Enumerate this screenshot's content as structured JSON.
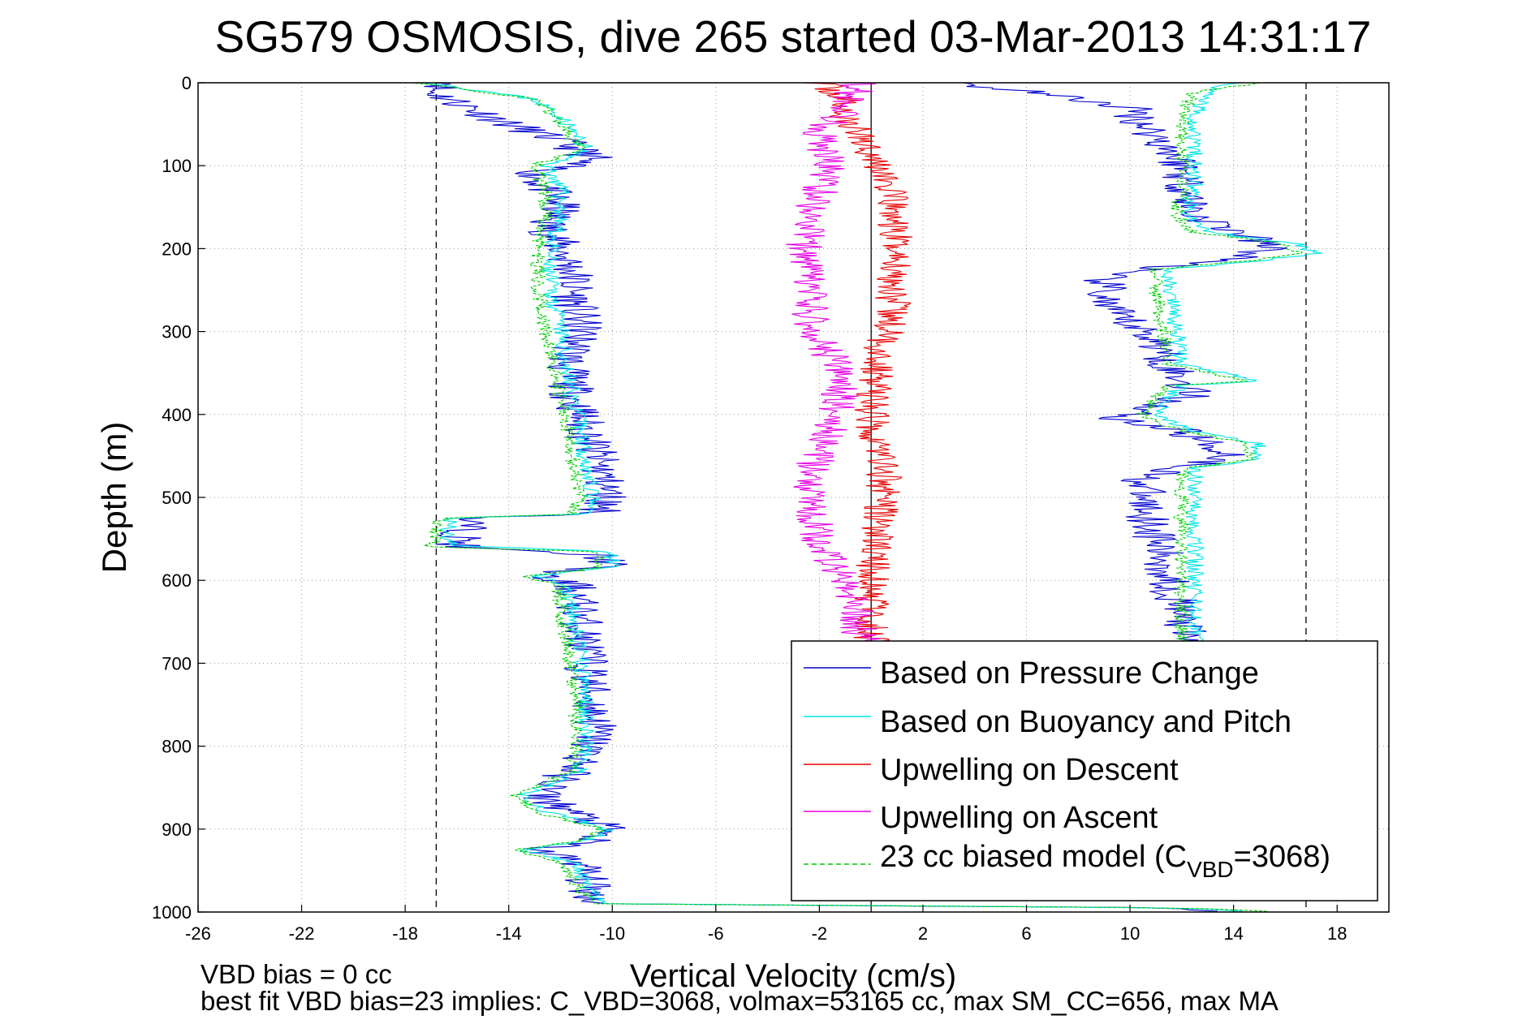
{
  "chart_data": {
    "type": "line",
    "title": "SG579 OSMOSIS, dive 265 started 03-Mar-2013 14:31:17",
    "xlabel": "Vertical Velocity (cm/s)",
    "ylabel": "Depth (m)",
    "xlim": [
      -26,
      20
    ],
    "ylim": [
      0,
      1000
    ],
    "y_reversed": true,
    "grid": true,
    "x_ticks": [
      -26,
      -22,
      -18,
      -14,
      -10,
      -6,
      -2,
      2,
      6,
      10,
      14,
      18
    ],
    "y_ticks": [
      0,
      100,
      200,
      300,
      400,
      500,
      600,
      700,
      800,
      900,
      1000
    ],
    "reference_lines": [
      -16.8,
      16.8
    ],
    "zero_line": 0,
    "legend_position": "lower-right",
    "legend": [
      {
        "label": "Based on Pressure Change",
        "color": "#0000cc",
        "style": "solid"
      },
      {
        "label": "Based on Buoyancy and Pitch",
        "color": "#00e5e5",
        "style": "solid"
      },
      {
        "label": "Upwelling on Descent",
        "color": "#e60000",
        "style": "solid"
      },
      {
        "label": "Upwelling on Ascent",
        "color": "#e600e6",
        "style": "solid"
      },
      {
        "label_main": "23 cc biased model (C",
        "label_sub": "VBD",
        "label_end": "=3068)",
        "color": "#00cc00",
        "style": "dashed"
      }
    ],
    "series": [
      {
        "name": "Based on Pressure Change",
        "color": "#0000cc",
        "noise": 0.9,
        "seed": 11,
        "descent": [
          [
            0,
            -16
          ],
          [
            10,
            -17
          ],
          [
            30,
            -15.5
          ],
          [
            50,
            -14
          ],
          [
            70,
            -12
          ],
          [
            90,
            -10.8
          ],
          [
            110,
            -13
          ],
          [
            130,
            -12.5
          ],
          [
            150,
            -12
          ],
          [
            170,
            -12.5
          ],
          [
            200,
            -12
          ],
          [
            230,
            -11.5
          ],
          [
            260,
            -11.5
          ],
          [
            300,
            -11.2
          ],
          [
            340,
            -11.8
          ],
          [
            380,
            -11.5
          ],
          [
            420,
            -11
          ],
          [
            460,
            -10.5
          ],
          [
            500,
            -10.2
          ],
          [
            520,
            -10.5
          ],
          [
            525,
            -15.5
          ],
          [
            560,
            -16
          ],
          [
            570,
            -10.5
          ],
          [
            580,
            -10
          ],
          [
            595,
            -13
          ],
          [
            605,
            -11.5
          ],
          [
            650,
            -11.2
          ],
          [
            700,
            -11
          ],
          [
            750,
            -10.8
          ],
          [
            780,
            -10.6
          ],
          [
            820,
            -11.2
          ],
          [
            860,
            -12.8
          ],
          [
            880,
            -11.5
          ],
          [
            900,
            -10.2
          ],
          [
            915,
            -11
          ],
          [
            925,
            -13
          ],
          [
            940,
            -11.2
          ],
          [
            960,
            -11
          ],
          [
            980,
            -10.8
          ],
          [
            990,
            -10.5
          ],
          [
            995,
            12
          ],
          [
            1000,
            14
          ]
        ],
        "ascent": [
          [
            0,
            3
          ],
          [
            10,
            6
          ],
          [
            30,
            10
          ],
          [
            50,
            10.5
          ],
          [
            80,
            11.5
          ],
          [
            100,
            12
          ],
          [
            130,
            12.2
          ],
          [
            160,
            12.5
          ],
          [
            185,
            14.5
          ],
          [
            200,
            15.5
          ],
          [
            215,
            13.5
          ],
          [
            230,
            9
          ],
          [
            250,
            9
          ],
          [
            270,
            9
          ],
          [
            290,
            10
          ],
          [
            310,
            11
          ],
          [
            340,
            11.5
          ],
          [
            360,
            12
          ],
          [
            375,
            12.5
          ],
          [
            390,
            11
          ],
          [
            405,
            9.5
          ],
          [
            420,
            12
          ],
          [
            450,
            14
          ],
          [
            465,
            12
          ],
          [
            475,
            10.5
          ],
          [
            500,
            10.5
          ],
          [
            550,
            11
          ],
          [
            600,
            11.5
          ],
          [
            650,
            12
          ],
          [
            680,
            12.2
          ]
        ]
      },
      {
        "name": "Based on Buoyancy and Pitch",
        "color": "#00e5e5",
        "noise": 0.35,
        "seed": 23,
        "descent": [
          [
            0,
            -17
          ],
          [
            20,
            -13
          ],
          [
            40,
            -12
          ],
          [
            60,
            -11.5
          ],
          [
            80,
            -11
          ],
          [
            100,
            -12.5
          ],
          [
            130,
            -12
          ],
          [
            160,
            -12
          ],
          [
            190,
            -12.3
          ],
          [
            220,
            -12.5
          ],
          [
            260,
            -12.3
          ],
          [
            300,
            -12
          ],
          [
            340,
            -11.8
          ],
          [
            380,
            -11.5
          ],
          [
            420,
            -11.2
          ],
          [
            460,
            -11
          ],
          [
            500,
            -10.8
          ],
          [
            520,
            -11
          ],
          [
            525,
            -16.3
          ],
          [
            558,
            -16.3
          ],
          [
            565,
            -10
          ],
          [
            585,
            -10
          ],
          [
            595,
            -13.2
          ],
          [
            605,
            -11.8
          ],
          [
            650,
            -11.5
          ],
          [
            700,
            -11.2
          ],
          [
            750,
            -11
          ],
          [
            800,
            -11
          ],
          [
            830,
            -11.3
          ],
          [
            860,
            -13.5
          ],
          [
            880,
            -12.5
          ],
          [
            900,
            -10.2
          ],
          [
            915,
            -11
          ],
          [
            925,
            -13.5
          ],
          [
            940,
            -11.5
          ],
          [
            970,
            -11
          ],
          [
            990,
            -10.5
          ],
          [
            995,
            12
          ],
          [
            1000,
            15
          ]
        ],
        "ascent": [
          [
            0,
            14
          ],
          [
            10,
            13
          ],
          [
            40,
            12.5
          ],
          [
            80,
            12.5
          ],
          [
            120,
            12.5
          ],
          [
            160,
            12.2
          ],
          [
            180,
            13
          ],
          [
            195,
            16.5
          ],
          [
            205,
            17.2
          ],
          [
            215,
            15
          ],
          [
            225,
            11.5
          ],
          [
            250,
            11.5
          ],
          [
            300,
            11.8
          ],
          [
            340,
            12
          ],
          [
            360,
            15
          ],
          [
            365,
            12
          ],
          [
            380,
            11.5
          ],
          [
            400,
            11
          ],
          [
            420,
            12.5
          ],
          [
            435,
            15
          ],
          [
            455,
            15
          ],
          [
            465,
            12.5
          ],
          [
            480,
            12.5
          ],
          [
            520,
            12.5
          ],
          [
            580,
            12.5
          ],
          [
            620,
            12.5
          ],
          [
            680,
            12.5
          ]
        ]
      },
      {
        "name": "Upwelling on Descent",
        "color": "#e60000",
        "noise": 0.7,
        "seed": 37,
        "descent": [
          [
            0,
            -2
          ],
          [
            20,
            -1
          ],
          [
            40,
            -1.2
          ],
          [
            60,
            -0.5
          ],
          [
            80,
            0
          ],
          [
            100,
            0.3
          ],
          [
            120,
            0.6
          ],
          [
            150,
            0.8
          ],
          [
            170,
            0.8
          ],
          [
            200,
            1
          ],
          [
            250,
            0.9
          ],
          [
            290,
            0.7
          ],
          [
            320,
            0.4
          ],
          [
            350,
            0.2
          ],
          [
            380,
            0.1
          ],
          [
            400,
            0
          ],
          [
            430,
            0.2
          ],
          [
            460,
            0.5
          ],
          [
            500,
            0.5
          ],
          [
            550,
            0.2
          ],
          [
            600,
            0
          ],
          [
            650,
            0
          ],
          [
            700,
            0
          ]
        ]
      },
      {
        "name": "Upwelling on Ascent",
        "color": "#e600e6",
        "noise": 0.75,
        "seed": 53,
        "descent": [
          [
            0,
            -0.5
          ],
          [
            20,
            -0.8
          ],
          [
            40,
            -1.2
          ],
          [
            60,
            -2
          ],
          [
            100,
            -1.6
          ],
          [
            150,
            -2.2
          ],
          [
            200,
            -2.6
          ],
          [
            250,
            -2.4
          ],
          [
            300,
            -2.3
          ],
          [
            340,
            -1.3
          ],
          [
            370,
            -1.2
          ],
          [
            400,
            -1.3
          ],
          [
            430,
            -1.8
          ],
          [
            460,
            -2.2
          ],
          [
            500,
            -2.3
          ],
          [
            550,
            -2.1
          ],
          [
            580,
            -1.5
          ],
          [
            620,
            -0.8
          ],
          [
            650,
            -0.5
          ],
          [
            680,
            -0.3
          ]
        ]
      },
      {
        "name": "23 cc biased model",
        "color": "#00cc00",
        "noise": 0.3,
        "seed": 71,
        "dashed": true,
        "descent": [
          [
            0,
            -17.5
          ],
          [
            20,
            -13
          ],
          [
            40,
            -12.2
          ],
          [
            60,
            -11.8
          ],
          [
            80,
            -11.2
          ],
          [
            100,
            -13
          ],
          [
            130,
            -12.6
          ],
          [
            160,
            -12.6
          ],
          [
            190,
            -12.8
          ],
          [
            220,
            -12.9
          ],
          [
            260,
            -12.8
          ],
          [
            300,
            -12.6
          ],
          [
            340,
            -12.3
          ],
          [
            380,
            -12
          ],
          [
            420,
            -11.7
          ],
          [
            460,
            -11.5
          ],
          [
            500,
            -11.2
          ],
          [
            520,
            -11.5
          ],
          [
            525,
            -16.6
          ],
          [
            560,
            -17
          ],
          [
            565,
            -10.5
          ],
          [
            585,
            -10.5
          ],
          [
            595,
            -13.6
          ],
          [
            605,
            -12.1
          ],
          [
            650,
            -11.9
          ],
          [
            700,
            -11.6
          ],
          [
            750,
            -11.4
          ],
          [
            800,
            -11.4
          ],
          [
            830,
            -11.6
          ],
          [
            860,
            -13.8
          ],
          [
            880,
            -12.8
          ],
          [
            900,
            -10.5
          ],
          [
            915,
            -11.3
          ],
          [
            925,
            -13.8
          ],
          [
            940,
            -11.9
          ],
          [
            970,
            -11.3
          ],
          [
            990,
            -10.8
          ],
          [
            995,
            12
          ],
          [
            1000,
            16
          ]
        ],
        "ascent": [
          [
            0,
            15
          ],
          [
            10,
            12.5
          ],
          [
            40,
            12
          ],
          [
            80,
            12
          ],
          [
            120,
            12
          ],
          [
            160,
            11.8
          ],
          [
            180,
            12.5
          ],
          [
            195,
            16
          ],
          [
            205,
            16.6
          ],
          [
            215,
            14.5
          ],
          [
            225,
            11
          ],
          [
            250,
            11
          ],
          [
            300,
            11.3
          ],
          [
            340,
            11.5
          ],
          [
            360,
            14.6
          ],
          [
            365,
            11.5
          ],
          [
            380,
            11
          ],
          [
            400,
            10.5
          ],
          [
            420,
            12
          ],
          [
            435,
            14.6
          ],
          [
            455,
            14.6
          ],
          [
            465,
            12
          ],
          [
            480,
            12
          ],
          [
            520,
            12
          ],
          [
            580,
            12
          ],
          [
            620,
            12
          ],
          [
            680,
            12
          ]
        ]
      }
    ]
  },
  "annotations": {
    "footer_line1": "VBD bias = 0 cc",
    "footer_line2": "best fit VBD bias=23 implies: C_VBD=3068, volmax=53165 cc, max SM_CC=656, max MA"
  }
}
